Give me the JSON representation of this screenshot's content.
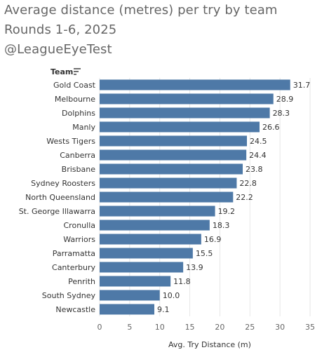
{
  "title": {
    "line1": "Average distance (metres) per try by team",
    "line2": "Rounds 1-6, 2025",
    "line3": "@LeagueEyeTest"
  },
  "row_header": "Team",
  "header_icon": "sort-descending-icon",
  "colors": {
    "bar": "#4e79a7",
    "gridline": "#e6e6e6",
    "title": "#666666"
  },
  "chart_data": {
    "type": "bar",
    "orientation": "horizontal",
    "categories": [
      "Gold Coast",
      "Melbourne",
      "Dolphins",
      "Manly",
      "Wests Tigers",
      "Canberra",
      "Brisbane",
      "Sydney Roosters",
      "North Queensland",
      "St. George Illawarra",
      "Cronulla",
      "Warriors",
      "Parramatta",
      "Canterbury",
      "Penrith",
      "South Sydney",
      "Newcastle"
    ],
    "values": [
      31.7,
      28.9,
      28.3,
      26.6,
      24.5,
      24.4,
      23.8,
      22.8,
      22.2,
      19.2,
      18.3,
      16.9,
      15.5,
      13.9,
      11.8,
      10.0,
      9.1
    ],
    "value_labels": [
      "31.7",
      "28.9",
      "28.3",
      "26.6",
      "24.5",
      "24.4",
      "23.8",
      "22.8",
      "22.2",
      "19.2",
      "18.3",
      "16.9",
      "15.5",
      "13.9",
      "11.8",
      "10.0",
      "9.1"
    ],
    "title": "Average distance (metres) per try by team",
    "subtitle": "Rounds 1-6, 2025",
    "xlabel": "Avg. Try Distance (m)",
    "ylabel": "Team",
    "xlim": [
      0,
      35
    ],
    "xticks": [
      0,
      5,
      10,
      15,
      20,
      25,
      30,
      35
    ],
    "xtick_labels": [
      "0",
      "5",
      "10",
      "15",
      "20",
      "25",
      "30",
      "35"
    ],
    "grid": true
  }
}
